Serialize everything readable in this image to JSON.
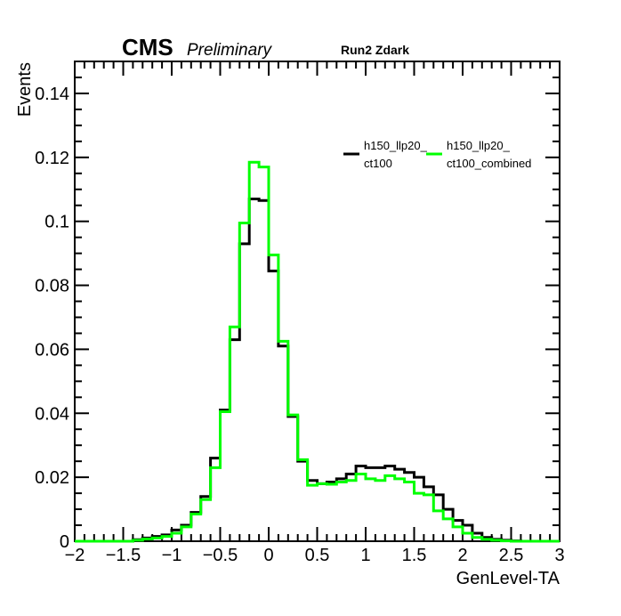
{
  "header": {
    "cms": "CMS",
    "preliminary": "Preliminary",
    "run": "Run2 Zdark"
  },
  "legend": {
    "entry0_line1": "h150_llp20_",
    "entry0_line2": "ct100",
    "entry1_line1": "h150_llp20_",
    "entry1_line2": "ct100_combined"
  },
  "chart_data": {
    "type": "line",
    "style": "step-histogram",
    "xlabel": "GenLevel-TA",
    "ylabel": "Events",
    "xlim": [
      -2,
      3
    ],
    "ylim": [
      0,
      0.15
    ],
    "x_ticks": [
      -2,
      -1.5,
      -1,
      -0.5,
      0,
      0.5,
      1,
      1.5,
      2,
      2.5,
      3
    ],
    "x_tick_labels": [
      "−2",
      "−1.5",
      "−1",
      "−0.5",
      "0",
      "0.5",
      "1",
      "1.5",
      "2",
      "2.5",
      "3"
    ],
    "y_ticks": [
      0,
      0.02,
      0.04,
      0.06,
      0.08,
      0.1,
      0.12,
      0.14
    ],
    "y_tick_labels": [
      "0",
      "0.02",
      "0.04",
      "0.06",
      "0.08",
      "0.1",
      "0.12",
      "0.14"
    ],
    "bin_edges": [
      -2,
      -1.9,
      -1.8,
      -1.7,
      -1.6,
      -1.5,
      -1.4,
      -1.3,
      -1.2,
      -1.1,
      -1,
      -0.9,
      -0.8,
      -0.7,
      -0.6,
      -0.5,
      -0.4,
      -0.3,
      -0.2,
      -0.1,
      0,
      0.1,
      0.2,
      0.3,
      0.4,
      0.5,
      0.6,
      0.7,
      0.8,
      0.9,
      1,
      1.1,
      1.2,
      1.3,
      1.4,
      1.5,
      1.6,
      1.7,
      1.8,
      1.9,
      2,
      2.1,
      2.2,
      2.3,
      2.4,
      2.5,
      2.6,
      2.7,
      2.8,
      2.9,
      3
    ],
    "series": [
      {
        "name": "h150_llp20_ct100",
        "color": "#000000",
        "values": [
          0,
          0,
          0,
          0,
          0,
          0,
          0.0005,
          0.001,
          0.0015,
          0.002,
          0.0035,
          0.005,
          0.009,
          0.014,
          0.026,
          0.041,
          0.063,
          0.093,
          0.107,
          0.1065,
          0.0845,
          0.061,
          0.039,
          0.025,
          0.019,
          0.018,
          0.0185,
          0.0195,
          0.021,
          0.0235,
          0.023,
          0.023,
          0.0235,
          0.0225,
          0.0215,
          0.02,
          0.017,
          0.0145,
          0.01,
          0.0065,
          0.005,
          0.0025,
          0.0012,
          0.0006,
          0.0003,
          0.0001,
          0,
          0,
          0,
          0
        ]
      },
      {
        "name": "h150_llp20_ct100_combined",
        "color": "#00ff00",
        "values": [
          0,
          0,
          0,
          0,
          0,
          0,
          0.0003,
          0.0007,
          0.001,
          0.0015,
          0.0025,
          0.0045,
          0.0085,
          0.013,
          0.023,
          0.0405,
          0.067,
          0.0995,
          0.1185,
          0.117,
          0.0895,
          0.0625,
          0.0395,
          0.0255,
          0.0175,
          0.018,
          0.0178,
          0.0185,
          0.019,
          0.021,
          0.0195,
          0.019,
          0.0205,
          0.0195,
          0.0185,
          0.015,
          0.0145,
          0.0095,
          0.007,
          0.0045,
          0.0025,
          0.0012,
          0.0006,
          0.0003,
          0.0001,
          0,
          0,
          0,
          0,
          0
        ]
      }
    ],
    "legend_position": "top-right",
    "grid": false
  }
}
